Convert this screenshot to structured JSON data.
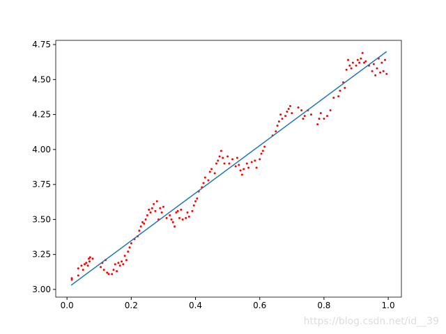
{
  "chart_data": {
    "type": "scatter",
    "series": [
      {
        "type": "scatter",
        "color": "#ff0000",
        "x": [
          0.015,
          0.015,
          0.035,
          0.035,
          0.045,
          0.05,
          0.055,
          0.06,
          0.065,
          0.068,
          0.07,
          0.072,
          0.08,
          0.105,
          0.11,
          0.115,
          0.12,
          0.125,
          0.13,
          0.14,
          0.145,
          0.15,
          0.155,
          0.16,
          0.165,
          0.17,
          0.175,
          0.18,
          0.185,
          0.19,
          0.195,
          0.2,
          0.21,
          0.22,
          0.225,
          0.23,
          0.235,
          0.24,
          0.245,
          0.25,
          0.255,
          0.26,
          0.265,
          0.27,
          0.275,
          0.28,
          0.285,
          0.29,
          0.295,
          0.3,
          0.31,
          0.32,
          0.325,
          0.33,
          0.335,
          0.34,
          0.345,
          0.35,
          0.355,
          0.36,
          0.37,
          0.375,
          0.38,
          0.39,
          0.395,
          0.4,
          0.405,
          0.41,
          0.42,
          0.425,
          0.43,
          0.44,
          0.445,
          0.45,
          0.46,
          0.465,
          0.47,
          0.475,
          0.48,
          0.485,
          0.49,
          0.5,
          0.505,
          0.515,
          0.525,
          0.53,
          0.535,
          0.54,
          0.545,
          0.55,
          0.56,
          0.565,
          0.575,
          0.585,
          0.59,
          0.6,
          0.605,
          0.61,
          0.615,
          0.64,
          0.65,
          0.655,
          0.66,
          0.665,
          0.67,
          0.68,
          0.685,
          0.69,
          0.695,
          0.7,
          0.72,
          0.73,
          0.735,
          0.74,
          0.75,
          0.76,
          0.78,
          0.785,
          0.79,
          0.8,
          0.81,
          0.82,
          0.83,
          0.845,
          0.85,
          0.86,
          0.865,
          0.87,
          0.875,
          0.88,
          0.885,
          0.89,
          0.9,
          0.905,
          0.91,
          0.915,
          0.92,
          0.925,
          0.93,
          0.94,
          0.95,
          0.955,
          0.96,
          0.965,
          0.97,
          0.975,
          0.98,
          0.985,
          0.99,
          0.995
        ],
        "values": [
          3.08,
          3.07,
          3.1,
          3.15,
          3.17,
          3.14,
          3.18,
          3.19,
          3.17,
          3.22,
          3.2,
          3.23,
          3.22,
          3.16,
          3.19,
          3.14,
          3.21,
          3.12,
          3.11,
          3.11,
          3.14,
          3.18,
          3.13,
          3.19,
          3.17,
          3.2,
          3.18,
          3.24,
          3.21,
          3.27,
          3.3,
          3.33,
          3.36,
          3.38,
          3.42,
          3.45,
          3.48,
          3.47,
          3.5,
          3.53,
          3.57,
          3.55,
          3.58,
          3.61,
          3.56,
          3.63,
          3.5,
          3.58,
          3.55,
          3.59,
          3.51,
          3.53,
          3.5,
          3.48,
          3.45,
          3.55,
          3.56,
          3.51,
          3.57,
          3.5,
          3.51,
          3.55,
          3.52,
          3.56,
          3.6,
          3.63,
          3.65,
          3.7,
          3.73,
          3.76,
          3.8,
          3.78,
          3.84,
          3.86,
          3.83,
          3.9,
          3.92,
          3.95,
          3.99,
          3.94,
          3.9,
          3.95,
          3.9,
          3.93,
          3.88,
          3.94,
          3.89,
          3.85,
          3.82,
          3.86,
          3.9,
          3.87,
          3.91,
          3.92,
          3.87,
          3.93,
          3.97,
          3.99,
          4.02,
          4.1,
          4.13,
          4.17,
          4.2,
          4.25,
          4.22,
          4.24,
          4.27,
          4.29,
          4.31,
          4.26,
          4.3,
          4.28,
          4.22,
          4.24,
          4.28,
          4.25,
          4.18,
          4.22,
          4.26,
          4.22,
          4.24,
          4.28,
          4.37,
          4.38,
          4.42,
          4.48,
          4.44,
          4.57,
          4.64,
          4.6,
          4.58,
          4.62,
          4.6,
          4.64,
          4.62,
          4.65,
          4.69,
          4.62,
          4.63,
          4.6,
          4.56,
          4.61,
          4.53,
          4.58,
          4.65,
          4.55,
          4.62,
          4.56,
          4.64,
          4.54
        ]
      },
      {
        "type": "line",
        "color": "#1f77b4",
        "x": [
          0.013,
          0.995
        ],
        "values": [
          3.03,
          4.7
        ]
      }
    ],
    "xlim": [
      -0.035,
      1.041
    ],
    "ylim": [
      2.945,
      4.78
    ],
    "xticks": [
      {
        "value": 0,
        "label": "0.0"
      },
      {
        "value": 0.2,
        "label": "0.2"
      },
      {
        "value": 0.4,
        "label": "0.4"
      },
      {
        "value": 0.6,
        "label": "0.6"
      },
      {
        "value": 0.8,
        "label": "0.8"
      },
      {
        "value": 1,
        "label": "1.0"
      }
    ],
    "yticks": [
      {
        "value": 3,
        "label": "3.00"
      },
      {
        "value": 3.25,
        "label": "3.25"
      },
      {
        "value": 3.5,
        "label": "3.50"
      },
      {
        "value": 3.75,
        "label": "3.75"
      },
      {
        "value": 4,
        "label": "4.00"
      },
      {
        "value": 4.25,
        "label": "4.25"
      },
      {
        "value": 4.5,
        "label": "4.50"
      },
      {
        "value": 4.75,
        "label": "4.75"
      }
    ],
    "watermark": "https://blog.csdn.net/id__39"
  }
}
